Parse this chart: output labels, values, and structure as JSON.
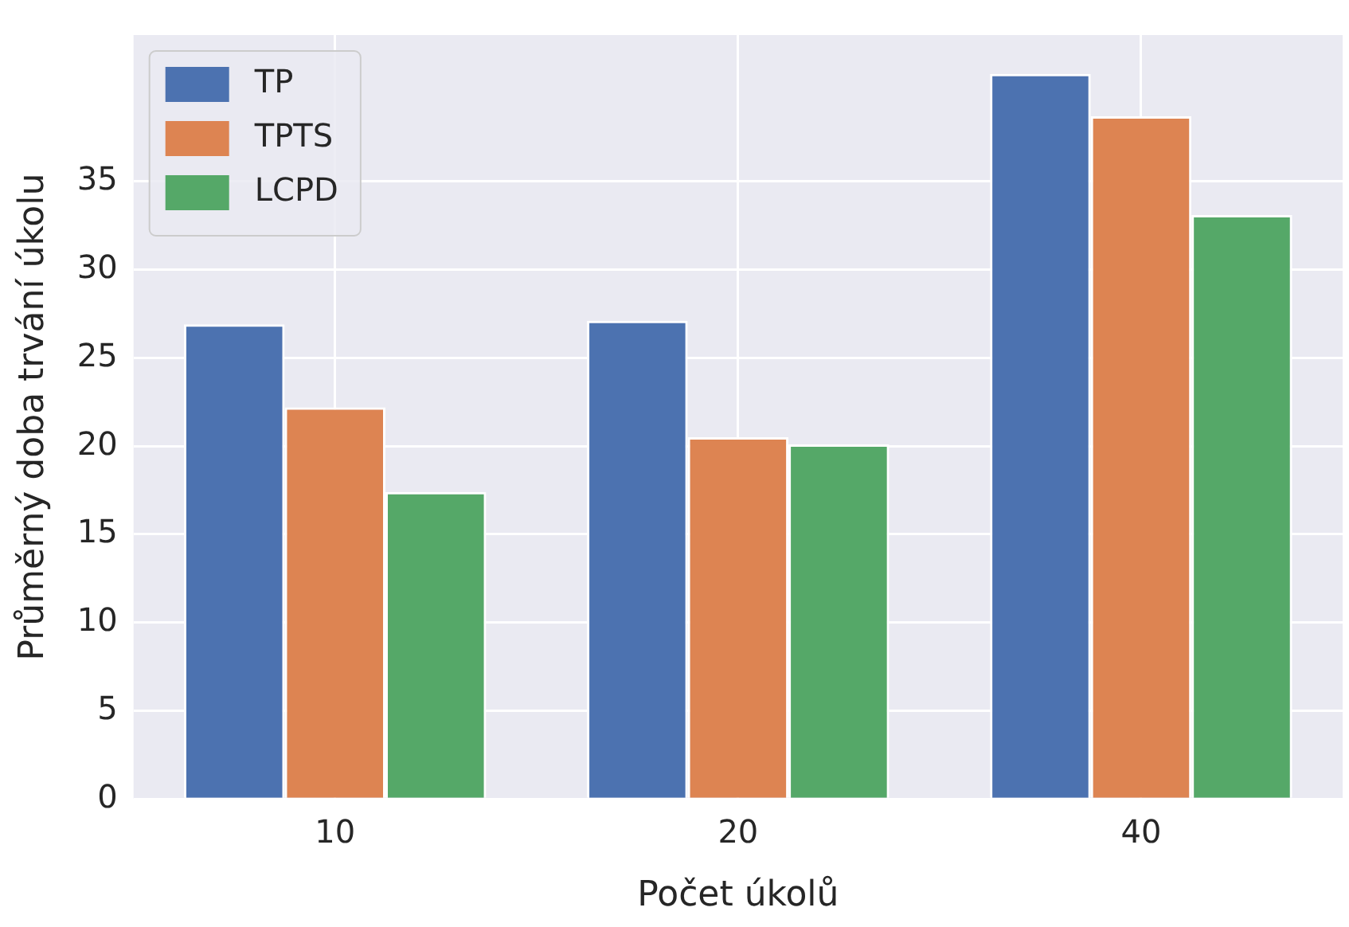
{
  "chart_data": {
    "type": "bar",
    "xlabel": "Počet úkolů",
    "ylabel": "Průměrný doba trvání úkolu",
    "categories": [
      "10",
      "20",
      "40"
    ],
    "series": [
      {
        "name": "TP",
        "color": "#4c72b0",
        "values": [
          26.9,
          27.1,
          41.1
        ]
      },
      {
        "name": "TPTS",
        "color": "#dd8452",
        "values": [
          22.2,
          20.5,
          38.7
        ]
      },
      {
        "name": "LCPD",
        "color": "#55a868",
        "values": [
          17.4,
          20.1,
          33.1
        ]
      }
    ],
    "ylim": [
      0,
      43.3
    ],
    "yticks": [
      0,
      5,
      10,
      15,
      20,
      25,
      30,
      35
    ],
    "grid": true,
    "legend": "top left"
  }
}
